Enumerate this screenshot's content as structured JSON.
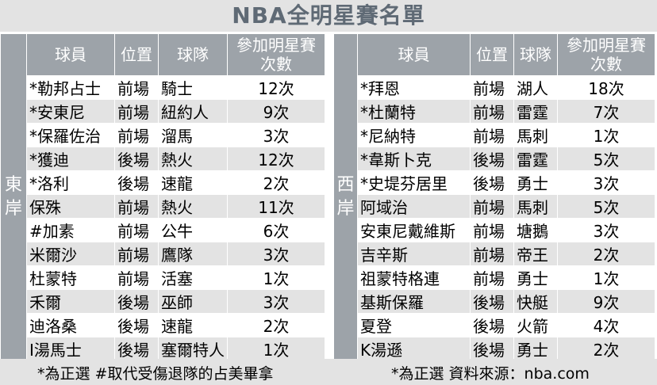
{
  "title": "NBA全明星賽名單",
  "headers": {
    "player": "球員",
    "position": "位置",
    "team": "球隊",
    "appearances_line1": "參加明星賽",
    "appearances_line2": "次數"
  },
  "east": {
    "label": "東岸",
    "rows": [
      {
        "player": "*勒邦占士",
        "position": "前場",
        "team": "騎士",
        "count": "12次"
      },
      {
        "player": "*安東尼",
        "position": "前場",
        "team": "紐約人",
        "count": "9次"
      },
      {
        "player": "*保羅佐治",
        "position": "前場",
        "team": "溜馬",
        "count": "3次"
      },
      {
        "player": "*獲迪",
        "position": "後場",
        "team": "熱火",
        "count": "12次"
      },
      {
        "player": "*洛利",
        "position": "後場",
        "team": "速龍",
        "count": "2次"
      },
      {
        "player": "保殊",
        "position": "前場",
        "team": "熱火",
        "count": "11次"
      },
      {
        "player": "#加素",
        "position": "前場",
        "team": "公牛",
        "count": "6次"
      },
      {
        "player": "米爾沙",
        "position": "前場",
        "team": "鷹隊",
        "count": "3次"
      },
      {
        "player": "杜蒙特",
        "position": "前場",
        "team": "活塞",
        "count": "1次"
      },
      {
        "player": "禾爾",
        "position": "後場",
        "team": "巫師",
        "count": "3次"
      },
      {
        "player": "迪洛桑",
        "position": "後場",
        "team": "速龍",
        "count": "2次"
      },
      {
        "player": "I湯馬士",
        "position": "後場",
        "team": "塞爾特人",
        "count": "1次"
      }
    ]
  },
  "west": {
    "label": "西岸",
    "rows": [
      {
        "player": "*拜恩",
        "position": "前場",
        "team": "湖人",
        "count": "18次"
      },
      {
        "player": "*杜蘭特",
        "position": "前場",
        "team": "雷霆",
        "count": "7次"
      },
      {
        "player": "*尼納特",
        "position": "前場",
        "team": "馬刺",
        "count": "1次"
      },
      {
        "player": "*韋斯卜克",
        "position": "後場",
        "team": "雷霆",
        "count": "5次"
      },
      {
        "player": "*史堤芬居里",
        "position": "後場",
        "team": "勇士",
        "count": "3次"
      },
      {
        "player": "阿域治",
        "position": "前場",
        "team": "馬刺",
        "count": "5次"
      },
      {
        "player": "安東尼戴維斯",
        "position": "前場",
        "team": "塘鵝",
        "count": "3次"
      },
      {
        "player": "吉辛斯",
        "position": "前場",
        "team": "帝王",
        "count": "2次"
      },
      {
        "player": "祖蒙特格連",
        "position": "前場",
        "team": "勇士",
        "count": "1次"
      },
      {
        "player": "基斯保羅",
        "position": "後場",
        "team": "快艇",
        "count": "9次"
      },
      {
        "player": "夏登",
        "position": "後場",
        "team": "火箭",
        "count": "4次"
      },
      {
        "player": "K湯遜",
        "position": "後場",
        "team": "勇士",
        "count": "2次"
      }
    ]
  },
  "footer": {
    "left_note": "*為正選  #取代受傷退隊的占美畢拿",
    "right_note": "*為正選  資料來源：nba.com"
  }
}
